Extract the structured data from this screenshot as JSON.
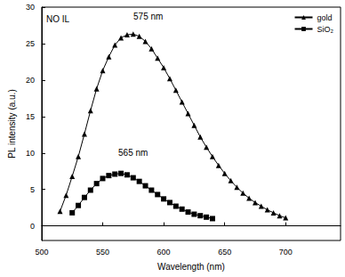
{
  "chart_data": {
    "type": "line",
    "x_label": "Wavelength (nm)",
    "y_label": "PL intensity (a.u.)",
    "annotations": [
      "NO IL",
      "575 nm",
      "565 nm"
    ],
    "xlim": [
      500,
      745
    ],
    "xticks": [
      500,
      550,
      600,
      650,
      700
    ],
    "ylim": [
      -2,
      30
    ],
    "yticks": [
      0,
      5,
      10,
      15,
      20,
      25,
      30
    ],
    "grid": false,
    "legend": "upper right",
    "series": [
      {
        "name": "gold",
        "color": "#000000",
        "marker": "triangle",
        "line_style": "solid",
        "x": [
          515,
          520,
          525,
          530,
          535,
          540,
          545,
          550,
          555,
          560,
          565,
          570,
          575,
          580,
          585,
          590,
          595,
          600,
          605,
          610,
          615,
          620,
          625,
          630,
          635,
          640,
          645,
          650,
          655,
          660,
          665,
          670,
          675,
          680,
          685,
          690,
          695,
          700
        ],
        "values": [
          2,
          4.2,
          6.8,
          9.5,
          12.6,
          15.8,
          18.8,
          21.3,
          23.2,
          24.8,
          25.8,
          26.2,
          26.3,
          26,
          25.3,
          24.3,
          23,
          21.7,
          20.2,
          18.6,
          17,
          15.4,
          13.8,
          12.2,
          10.8,
          9.5,
          8.3,
          7.2,
          6.2,
          5.3,
          4.5,
          3.8,
          3.2,
          2.7,
          2.2,
          1.8,
          1.4,
          1.1
        ]
      },
      {
        "name": "SiO₂",
        "color": "#000000",
        "marker": "square",
        "line_style": "solid",
        "x": [
          525,
          530,
          535,
          540,
          545,
          550,
          555,
          560,
          565,
          570,
          575,
          580,
          585,
          590,
          595,
          600,
          605,
          610,
          615,
          620,
          625,
          630,
          635,
          640
        ],
        "values": [
          1.8,
          2.8,
          3.9,
          4.9,
          5.8,
          6.5,
          6.9,
          7.1,
          7.2,
          7.0,
          6.6,
          6.1,
          5.5,
          4.9,
          4.3,
          3.7,
          3.2,
          2.7,
          2.3,
          1.9,
          1.6,
          1.4,
          1.2,
          1.0
        ]
      }
    ]
  }
}
